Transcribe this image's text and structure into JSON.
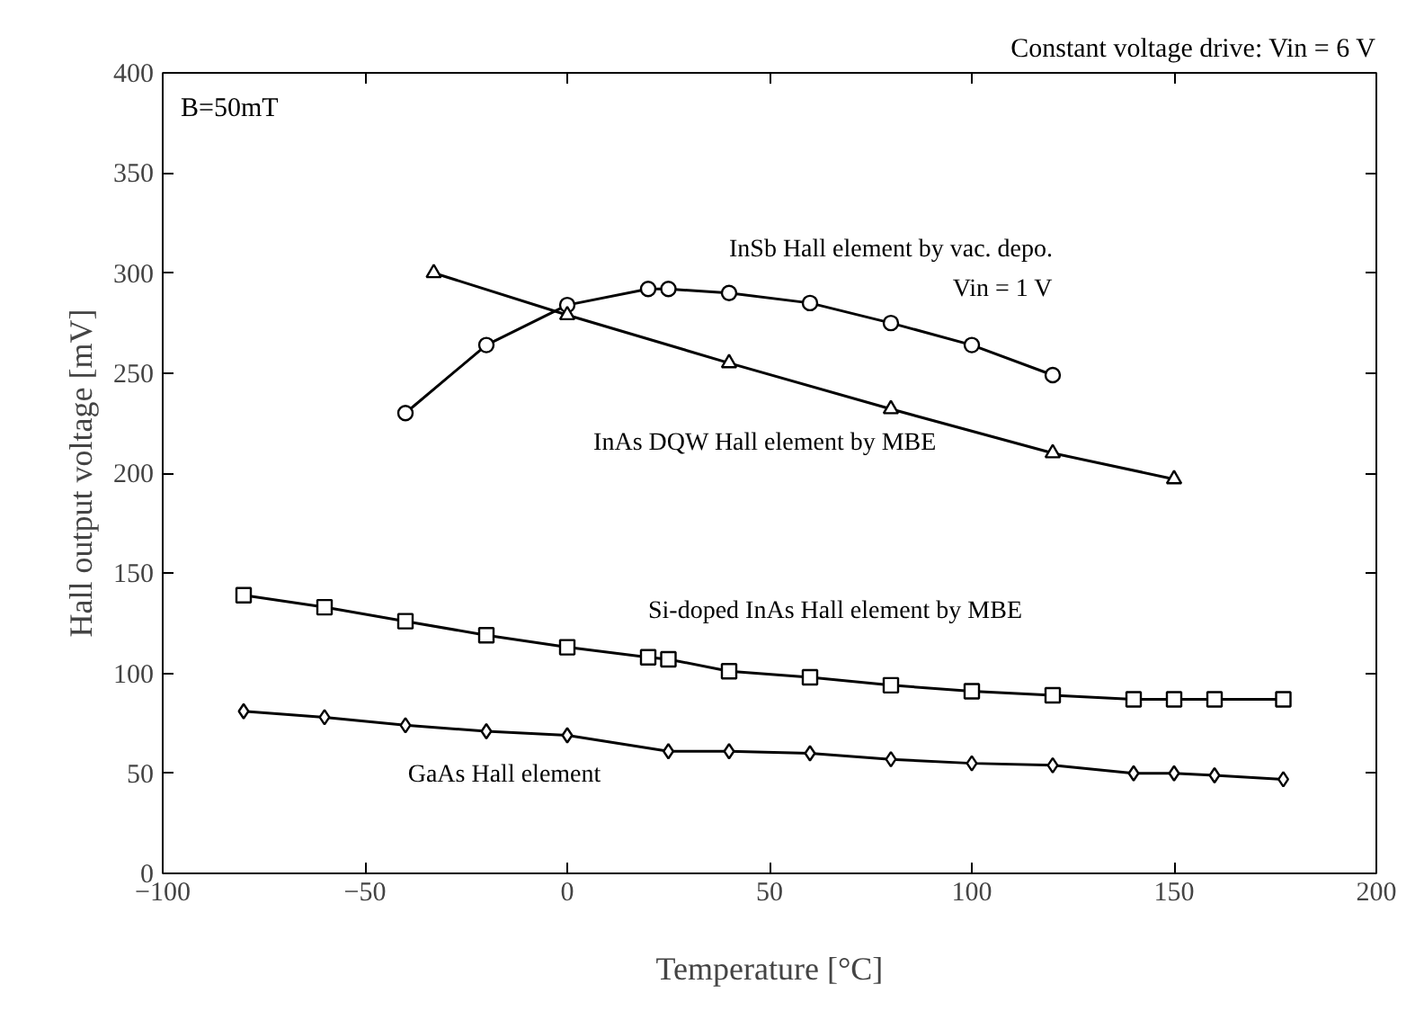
{
  "chart_data": {
    "type": "line",
    "xlabel": "Temperature [°C]",
    "ylabel": "Hall output voltage [mV]",
    "xlim": [
      -100,
      200
    ],
    "xticks": [
      -100,
      -50,
      0,
      50,
      100,
      150,
      200
    ],
    "ylim": [
      0,
      400
    ],
    "yticks": [
      0,
      50,
      100,
      150,
      200,
      250,
      300,
      350,
      400
    ],
    "grid": false,
    "line_style": "solid",
    "annotations": [
      "Constant voltage drive: Vin = 6 V",
      "B=50mT",
      "Vin = 1 V"
    ],
    "series": [
      {
        "name": "InSb Hall element by vac. depo.",
        "color": "#000000",
        "marker": "circle",
        "x": [
          -40,
          -20,
          0,
          20,
          25,
          40,
          60,
          80,
          100,
          120
        ],
        "values": [
          230,
          264,
          284,
          292,
          292,
          290,
          285,
          275,
          264,
          249
        ]
      },
      {
        "name": "InAs DQW Hall element by MBE",
        "color": "#000000",
        "marker": "triangle",
        "x": [
          -33,
          0,
          40,
          80,
          120,
          150
        ],
        "values": [
          300,
          279,
          255,
          232,
          210,
          197
        ]
      },
      {
        "name": "Si-doped InAs Hall element by MBE",
        "color": "#000000",
        "marker": "square",
        "x": [
          -80,
          -60,
          -40,
          -20,
          0,
          20,
          25,
          40,
          60,
          80,
          100,
          120,
          140,
          150,
          160,
          177
        ],
        "values": [
          139,
          133,
          126,
          119,
          113,
          108,
          107,
          101,
          98,
          94,
          91,
          89,
          87,
          87,
          87,
          87
        ]
      },
      {
        "name": "GaAs Hall element",
        "color": "#000000",
        "marker": "diamond",
        "x": [
          -80,
          -60,
          -40,
          -20,
          0,
          25,
          40,
          60,
          80,
          100,
          120,
          140,
          150,
          160,
          177
        ],
        "values": [
          81,
          78,
          74,
          71,
          69,
          61,
          61,
          60,
          57,
          55,
          54,
          50,
          50,
          49,
          47
        ]
      }
    ]
  }
}
